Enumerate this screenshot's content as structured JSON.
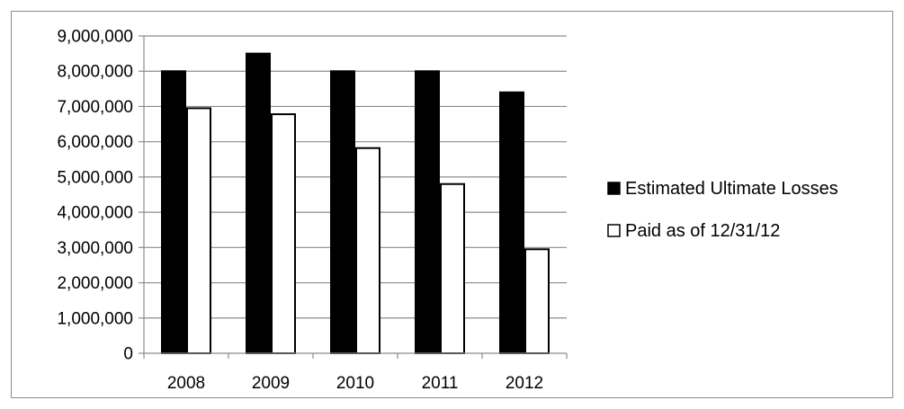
{
  "chart_data": {
    "type": "bar",
    "categories": [
      "2008",
      "2009",
      "2010",
      "2011",
      "2012"
    ],
    "series": [
      {
        "name": "Estimated Ultimate Losses",
        "values": [
          8000000,
          8500000,
          8000000,
          8000000,
          7400000
        ],
        "color": "#000000"
      },
      {
        "name": "Paid as of 12/31/12",
        "values": [
          6950000,
          6780000,
          5820000,
          4800000,
          2950000
        ],
        "color": "#ffffff"
      }
    ],
    "title": "",
    "xlabel": "",
    "ylabel": "",
    "ylim": [
      0,
      9000000
    ],
    "yticks": [
      "0",
      "1,000,000",
      "2,000,000",
      "3,000,000",
      "4,000,000",
      "5,000,000",
      "6,000,000",
      "7,000,000",
      "8,000,000",
      "9,000,000"
    ],
    "grid": true,
    "legend_position": "right"
  }
}
